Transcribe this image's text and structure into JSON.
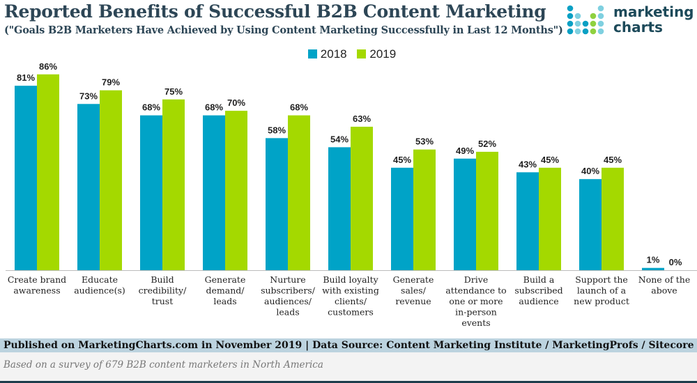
{
  "chart_data": {
    "type": "bar",
    "title": "Reported Benefits of Successful B2B Content Marketing",
    "subtitle": "(\"Goals B2B Marketers Have Achieved by Using Content Marketing Successfully in Last 12 Months\")",
    "categories": [
      [
        "Create brand",
        "awareness"
      ],
      [
        "Educate",
        "audience(s)"
      ],
      [
        "Build",
        "credibility/",
        "trust"
      ],
      [
        "Generate",
        "demand/",
        "leads"
      ],
      [
        "Nurture",
        "subscribers/",
        "audiences/",
        "leads"
      ],
      [
        "Build loyalty",
        "with existing",
        "clients/",
        "customers"
      ],
      [
        "Generate",
        "sales/",
        "revenue"
      ],
      [
        "Drive",
        "attendance to",
        "one or more",
        "in-person",
        "events"
      ],
      [
        "Build a",
        "subscribed",
        "audience"
      ],
      [
        "Support the",
        "launch of a",
        "new product"
      ],
      [
        "None of the",
        "above"
      ]
    ],
    "series": [
      {
        "name": "2018",
        "color": "#00a3c7",
        "values": [
          81,
          73,
          68,
          68,
          58,
          54,
          45,
          49,
          43,
          40,
          1
        ]
      },
      {
        "name": "2019",
        "color": "#a4d900",
        "values": [
          86,
          79,
          75,
          70,
          68,
          63,
          53,
          52,
          45,
          45,
          0
        ]
      }
    ],
    "value_suffix": "%",
    "xlabel": "",
    "ylabel": "",
    "ylim": [
      0,
      100
    ],
    "grid": false,
    "legend_position": "top-center"
  },
  "logo": {
    "line1": "marketing",
    "line2": "charts"
  },
  "footer": {
    "source": "Published on MarketingCharts.com in November 2019 | Data Source: Content Marketing Institute / MarketingProfs / Sitecore",
    "note": "Based on a survey of 679 B2B content marketers in North America"
  }
}
